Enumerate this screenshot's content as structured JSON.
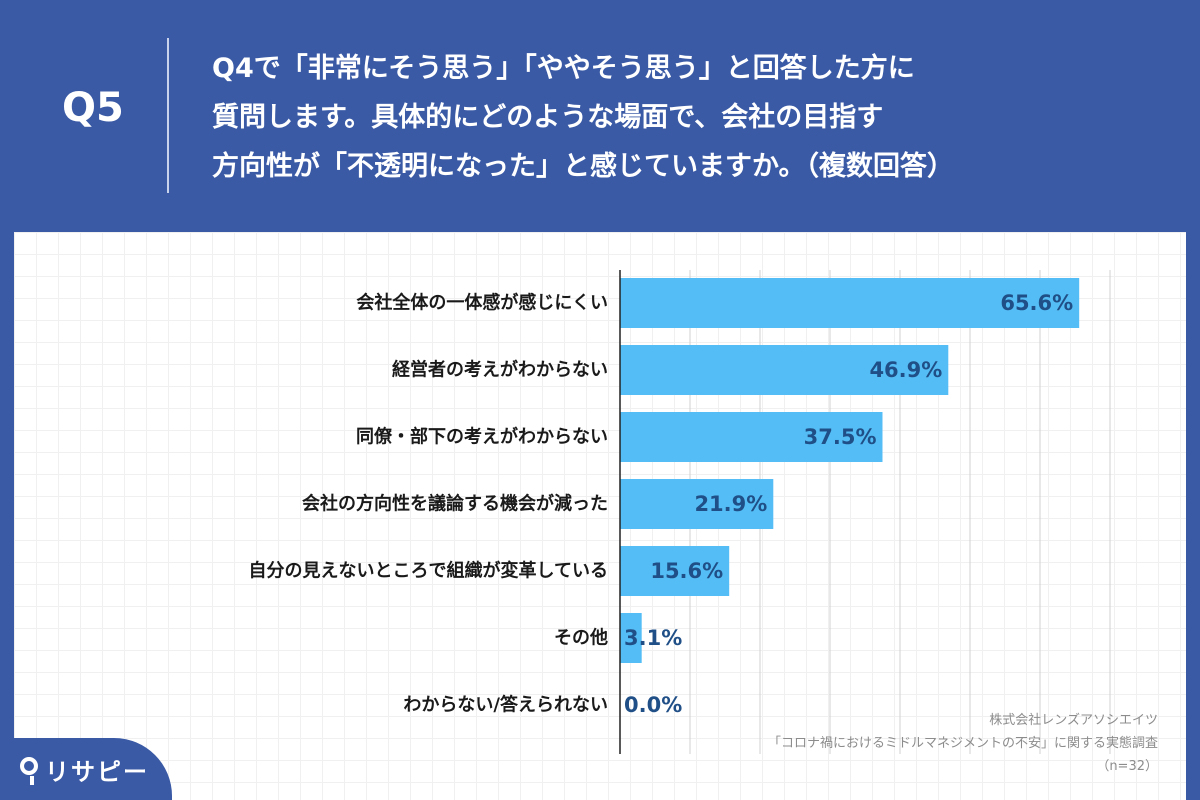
{
  "header": {
    "badge": "Q5",
    "question_lines": [
      "Q4で「非常にそう思う」「ややそう思う」と回答した方に",
      "質問します。具体的にどのような場面で、会社の目指す",
      "方向性が「不透明になった」と感じていますか。（複数回答）"
    ]
  },
  "colors": {
    "header_background": "#3a5aa6",
    "bar": "#55bdf5",
    "value_label": "#1f4f86",
    "category_label": "#1a1a1a",
    "grid": "#d0d0d0"
  },
  "chart_data": {
    "type": "bar",
    "orientation": "horizontal",
    "categories": [
      "会社全体の一体感が感じにくい",
      "経営者の考えがわからない",
      "同僚・部下の考えがわからない",
      "会社の方向性を議論する機会が減った",
      "自分の見えないところで組織が変革している",
      "その他",
      "わからない/答えられない"
    ],
    "values": [
      65.6,
      46.9,
      37.5,
      21.9,
      15.6,
      3.1,
      0.0
    ],
    "value_labels": [
      "65.6%",
      "46.9%",
      "37.5%",
      "21.9%",
      "15.6%",
      "3.1%",
      "0.0%"
    ],
    "xlim": [
      0,
      70
    ],
    "grid": true,
    "value_label_position": "inside-end"
  },
  "source": {
    "lines": [
      "株式会社レンズアソシエイツ",
      "「コロナ禍におけるミドルマネジメントの不安」に関する実態調査",
      "（n=32）"
    ]
  },
  "logo": {
    "icon": "location-pin-icon",
    "text": "リサピー"
  }
}
